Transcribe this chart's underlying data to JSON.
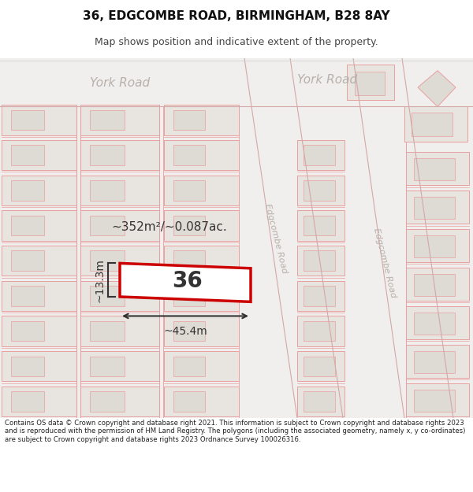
{
  "title_line1": "36, EDGCOMBE ROAD, BIRMINGHAM, B28 8AY",
  "title_line2": "Map shows position and indicative extent of the property.",
  "footer_text": "Contains OS data © Crown copyright and database right 2021. This information is subject to Crown copyright and database rights 2023 and is reproduced with the permission of HM Land Registry. The polygons (including the associated geometry, namely x, y co-ordinates) are subject to Crown copyright and database rights 2023 Ordnance Survey 100026316.",
  "map_bg": "#f0efed",
  "block_fill": "#e8e4df",
  "block_fill2": "#dedad4",
  "block_stroke": "#e8a0a0",
  "highlight_color": "#cc0000",
  "road_line_color": "#d4a8a8",
  "area_label": "~352m²/~0.087ac.",
  "prop_label": "36",
  "width_label": "~45.4m",
  "height_label": "~13.3m",
  "road_label_left": "York Road",
  "road_label_right": "York Road",
  "road_label_diag1": "Edgcombe Road",
  "road_label_diag2": "Edgcombe Road",
  "text_color": "#333333",
  "road_text_color": "#b8b0aa"
}
